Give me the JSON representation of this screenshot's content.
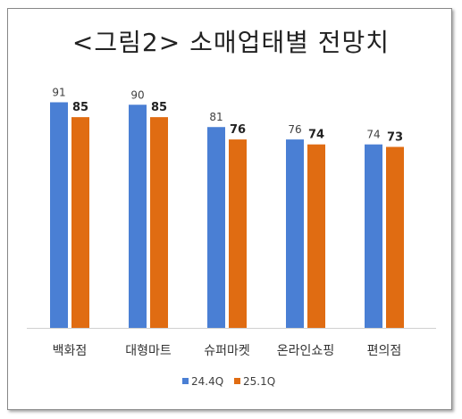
{
  "chart_data": {
    "type": "bar",
    "title": "<그림2> 소매업태별 전망치",
    "categories": [
      "백화점",
      "대형마트",
      "슈퍼마켓",
      "온라인쇼핑",
      "편의점"
    ],
    "series": [
      {
        "name": "24.4Q",
        "values": [
          91,
          90,
          81,
          76,
          74
        ],
        "color": "#4a7fd4"
      },
      {
        "name": "25.1Q",
        "values": [
          85,
          85,
          76,
          74,
          73
        ],
        "color": "#e06c12"
      }
    ],
    "ylim": [
      0,
      100
    ],
    "grid": false,
    "legend_position": "bottom"
  }
}
